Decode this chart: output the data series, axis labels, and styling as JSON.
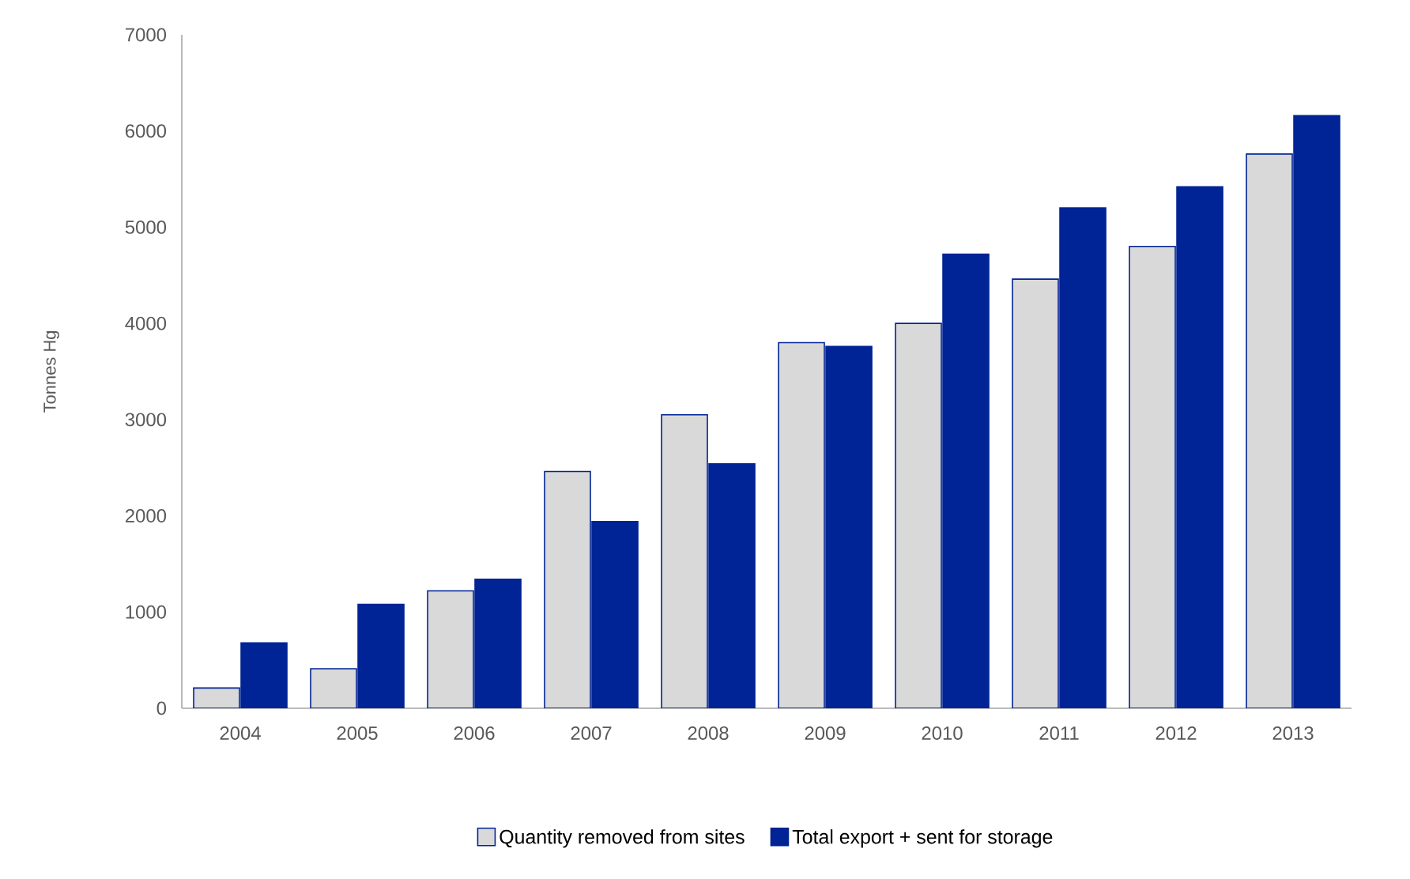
{
  "chart_data": {
    "type": "bar",
    "ylabel": "Tonnes Hg",
    "categories": [
      "2004",
      "2005",
      "2006",
      "2007",
      "2008",
      "2009",
      "2010",
      "2011",
      "2012",
      "2013"
    ],
    "series": [
      {
        "name": "Quantity removed from sites",
        "color": "#d9d9d9",
        "values": [
          210,
          410,
          1220,
          2460,
          3050,
          3800,
          4000,
          4460,
          4800,
          5760
        ]
      },
      {
        "name": "Total export + sent for storage",
        "color": "#002395",
        "values": [
          680,
          1080,
          1340,
          1940,
          2540,
          3760,
          4720,
          5200,
          5420,
          6160
        ]
      }
    ],
    "ylim": [
      0,
      7000
    ],
    "yticks": [
      0,
      1000,
      2000,
      3000,
      4000,
      5000,
      6000,
      7000
    ],
    "grid": false,
    "legend": "bottom"
  }
}
